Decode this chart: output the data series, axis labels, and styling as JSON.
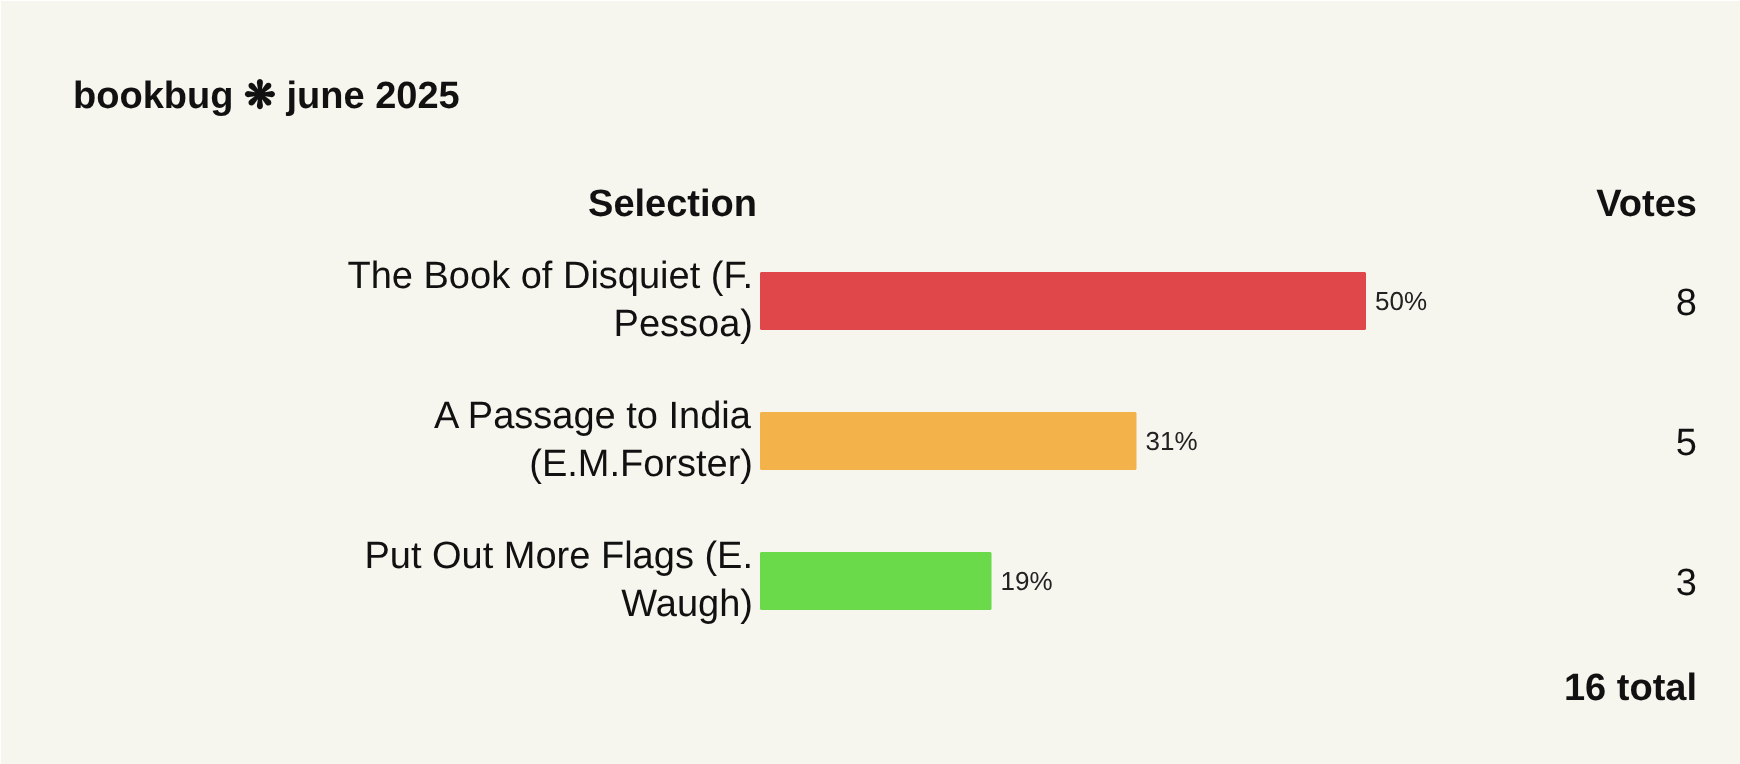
{
  "chart_data": {
    "type": "bar",
    "orientation": "horizontal",
    "title": "bookbug ❋ june 2025",
    "ylabel": "Selection",
    "categories": [
      "The Book of Disquiet (F. Pessoa)",
      "A Passage to India (E.M.Forster)",
      "Put Out More Flags (E. Waugh)"
    ],
    "values": [
      50,
      31,
      19
    ],
    "colors": [
      "#e0474b",
      "#f3b24a",
      "#6ad94a"
    ],
    "value_labels": [
      "50%",
      "31%",
      "19%"
    ],
    "annotations": [
      "Votes",
      "8",
      "5",
      "3",
      "16 total"
    ]
  }
}
